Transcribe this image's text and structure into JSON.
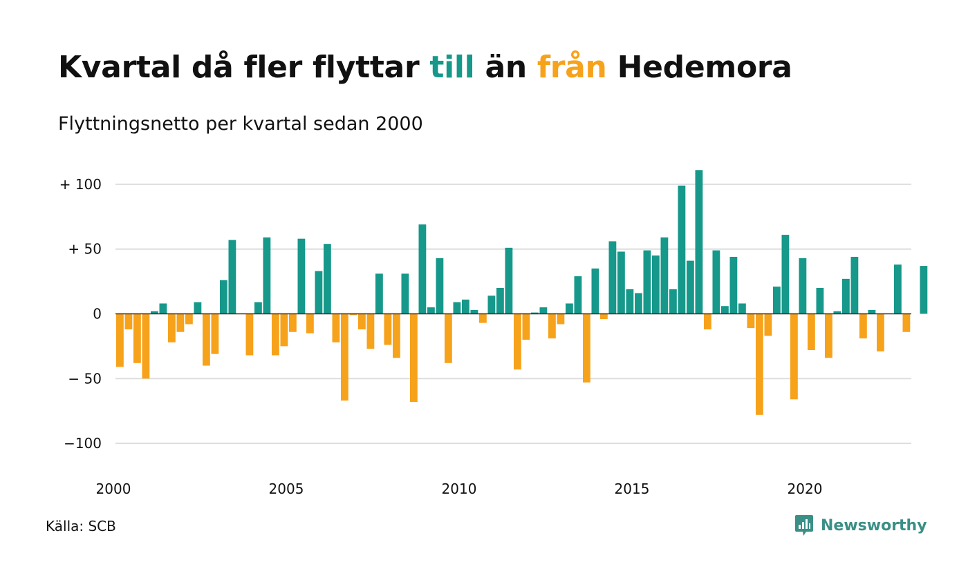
{
  "title": {
    "part1": "Kvartal då fler flyttar ",
    "highlight_in": "till",
    "part2": " än ",
    "highlight_out": "från",
    "part3": " Hedemora"
  },
  "subtitle": "Flyttningsnetto per kvartal sedan 2000",
  "source": "Källa: SCB",
  "brand": {
    "name": "Newsworthy",
    "icon": "newsworthy-chat-icon",
    "color": "#3a8f86"
  },
  "colors": {
    "positive": "#16988a",
    "negative": "#f7a21b",
    "grid": "#dddddd",
    "axis": "#333333"
  },
  "chart_data": {
    "type": "bar",
    "x_start": "2000 Q1",
    "frequency": "quarterly",
    "ylim": [
      -120,
      115
    ],
    "yticks": [
      100,
      50,
      0,
      -50,
      -100
    ],
    "ytick_labels": [
      "+ 100",
      "+  50",
      "0",
      "− 50",
      "−100"
    ],
    "xtick_labels": [
      "2000",
      "2005",
      "2010",
      "2015",
      "2020"
    ],
    "grid": true,
    "values": [
      -41,
      -12,
      -38,
      -50,
      2,
      8,
      -22,
      -14,
      -8,
      9,
      -40,
      -31,
      26,
      57,
      0,
      -32,
      9,
      59,
      -32,
      -25,
      -14,
      58,
      -15,
      33,
      54,
      -22,
      -67,
      -1,
      -12,
      -27,
      31,
      -24,
      -34,
      31,
      -68,
      69,
      5,
      43,
      -38,
      9,
      11,
      3,
      -7,
      14,
      20,
      51,
      -43,
      -20,
      1,
      5,
      -19,
      -8,
      8,
      29,
      -53,
      35,
      -4,
      56,
      48,
      19,
      16,
      49,
      45,
      59,
      19,
      99,
      41,
      111,
      -12,
      49,
      6,
      44,
      8,
      -11,
      -78,
      -17,
      21,
      61,
      -66,
      43,
      -28,
      20,
      -34,
      2,
      27,
      44,
      -19,
      3,
      -29,
      0,
      38,
      -14,
      0,
      37
    ]
  }
}
